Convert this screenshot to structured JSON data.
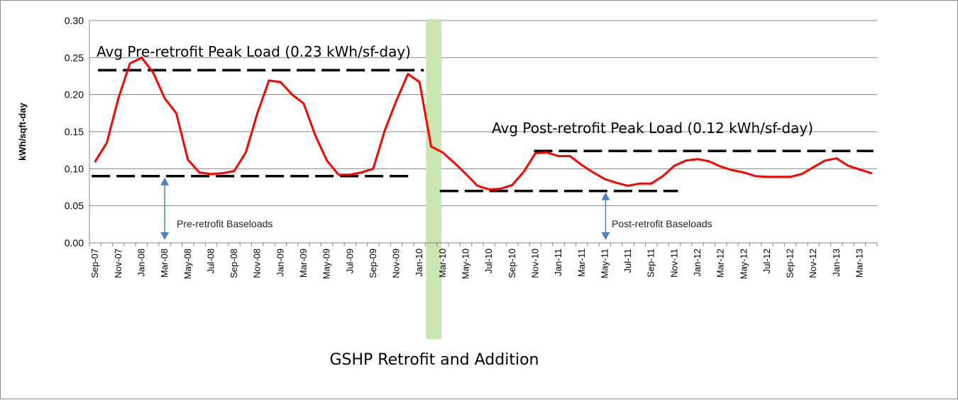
{
  "chart_data": {
    "type": "line",
    "title": "",
    "xlabel": "",
    "ylabel": "kWh/sqft-day",
    "ylim": [
      0,
      0.3
    ],
    "yticks": [
      "0.00",
      "0.05",
      "0.10",
      "0.15",
      "0.20",
      "0.25",
      "0.30"
    ],
    "xtick_labels": [
      "Sep-07",
      "Nov-07",
      "Jan-08",
      "Mar-08",
      "May-08",
      "Jul-08",
      "Sep-08",
      "Nov-08",
      "Jan-09",
      "Mar-09",
      "May-09",
      "Jul-09",
      "Sep-09",
      "Nov-09",
      "Jan-10",
      "Mar-10",
      "May-10",
      "Jul-10",
      "Sep-10",
      "Nov-10",
      "Jan-11",
      "Mar-11",
      "May-11",
      "Jul-11",
      "Sep-11",
      "Nov-11",
      "Jan-12",
      "Mar-12",
      "May-12",
      "Jul-12",
      "Sep-12",
      "Nov-12",
      "Jan-13",
      "Mar-13"
    ],
    "grid": "horizontal",
    "series": [
      {
        "color": "#ff0000",
        "values": [
          0.11,
          0.135,
          0.195,
          0.242,
          0.25,
          0.23,
          0.195,
          0.175,
          0.112,
          0.095,
          0.093,
          0.094,
          0.097,
          0.122,
          0.175,
          0.219,
          0.217,
          0.2,
          0.188,
          0.145,
          0.111,
          0.092,
          0.092,
          0.095,
          0.1,
          0.152,
          0.192,
          0.228,
          0.217,
          0.13,
          0.122,
          0.108,
          0.093,
          0.077,
          0.072,
          0.073,
          0.078,
          0.096,
          0.121,
          0.122,
          0.117,
          0.117,
          0.105,
          0.095,
          0.086,
          0.081,
          0.077,
          0.08,
          0.08,
          0.09,
          0.104,
          0.111,
          0.113,
          0.11,
          0.103,
          0.098,
          0.095,
          0.09,
          0.089,
          0.089,
          0.089,
          0.093,
          0.102,
          0.111,
          0.114,
          0.104,
          0.099,
          0.094
        ]
      }
    ],
    "annotations": {
      "pre_peak": {
        "label": "Avg Pre-retrofit Peak Load (0.23 kWh/sf-day)",
        "value": 0.233
      },
      "post_peak": {
        "label": "Avg Post-retrofit Peak Load (0.12 kWh/sf-day)",
        "value": 0.124
      },
      "pre_base": {
        "label": "Pre-retrofit Baseloads",
        "value": 0.09
      },
      "post_base": {
        "label": "Post-retrofit Baseloads",
        "value": 0.07
      },
      "retrofit_band": {
        "label": "GSHP Retrofit and Addition",
        "color": "#c9e6b0"
      }
    }
  }
}
